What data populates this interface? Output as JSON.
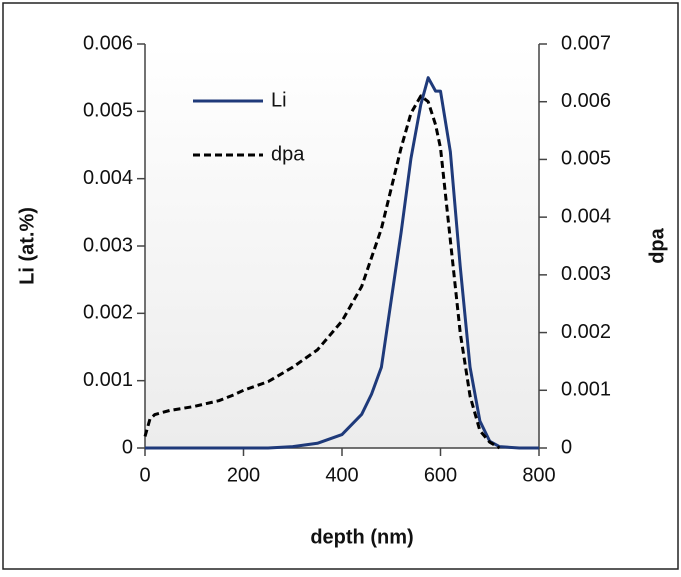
{
  "chart_data": {
    "type": "line",
    "x": [
      0,
      10,
      20,
      50,
      100,
      150,
      180,
      200,
      250,
      300,
      350,
      400,
      440,
      460,
      480,
      500,
      520,
      540,
      560,
      575,
      590,
      600,
      620,
      640,
      660,
      680,
      700,
      720,
      760,
      800
    ],
    "series": [
      {
        "name": "Li",
        "color": "#1f3a7a",
        "dash": false,
        "axis": "y",
        "values": [
          0,
          0,
          0,
          0,
          0,
          0,
          0,
          0,
          0,
          2e-05,
          7e-05,
          0.0002,
          0.0005,
          0.0008,
          0.0012,
          0.0022,
          0.0032,
          0.0043,
          0.0051,
          0.0055,
          0.0053,
          0.0053,
          0.0044,
          0.0027,
          0.0012,
          0.0004,
          0.0001,
          2e-05,
          0,
          0
        ]
      },
      {
        "name": "dpa",
        "color": "#000000",
        "dash": true,
        "axis": "y2",
        "values": [
          0.0002,
          0.0005,
          0.00058,
          0.00065,
          0.00072,
          0.00082,
          0.00092,
          0.001,
          0.00115,
          0.0014,
          0.0017,
          0.0022,
          0.0028,
          0.0033,
          0.0038,
          0.0045,
          0.0052,
          0.0058,
          0.0061,
          0.006,
          0.0056,
          0.0052,
          0.0036,
          0.002,
          0.0009,
          0.0003,
          0.0001,
          0,
          null,
          null
        ]
      }
    ],
    "xlabel": "depth (nm)",
    "ylabel": "Li (at.%)",
    "y2label": "dpa",
    "xlim": [
      0,
      800
    ],
    "xticks": [
      0,
      200,
      400,
      600,
      800
    ],
    "ylim": [
      0,
      0.006
    ],
    "yticks": [
      0,
      0.001,
      0.002,
      0.003,
      0.004,
      0.005,
      0.006
    ],
    "y2lim": [
      0,
      0.007
    ],
    "y2ticks": [
      0,
      0.001,
      0.002,
      0.003,
      0.004,
      0.005,
      0.006,
      0.007
    ],
    "legend": "top-left"
  }
}
